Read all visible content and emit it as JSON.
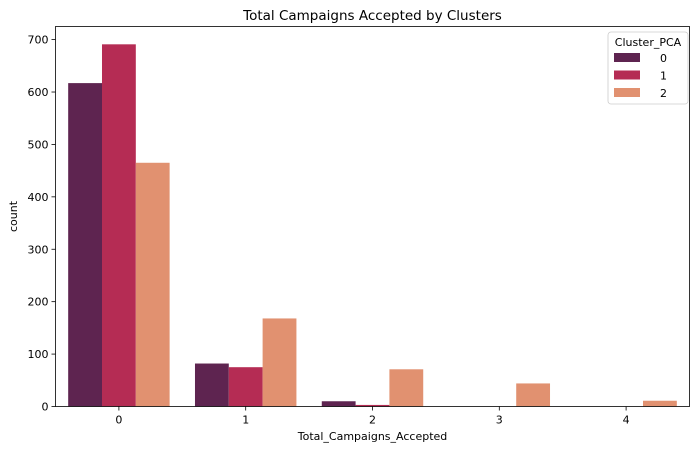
{
  "chart_data": {
    "type": "bar",
    "title": "Total Campaigns Accepted by Clusters",
    "xlabel": "Total_Campaigns_Accepted",
    "ylabel": "count",
    "categories": [
      "0",
      "1",
      "2",
      "3",
      "4"
    ],
    "ylim": [
      0,
      725
    ],
    "yticks": [
      0,
      100,
      200,
      300,
      400,
      500,
      600,
      700
    ],
    "grid": false,
    "legend": {
      "title": "Cluster_PCA",
      "placement": "top-right"
    },
    "series": [
      {
        "name": "0",
        "color": "#5e2450",
        "values": [
          617,
          82,
          10,
          0,
          0
        ]
      },
      {
        "name": "1",
        "color": "#b52c54",
        "values": [
          691,
          75,
          3,
          0,
          0
        ]
      },
      {
        "name": "2",
        "color": "#e19170",
        "values": [
          465,
          168,
          71,
          44,
          11
        ]
      }
    ]
  }
}
